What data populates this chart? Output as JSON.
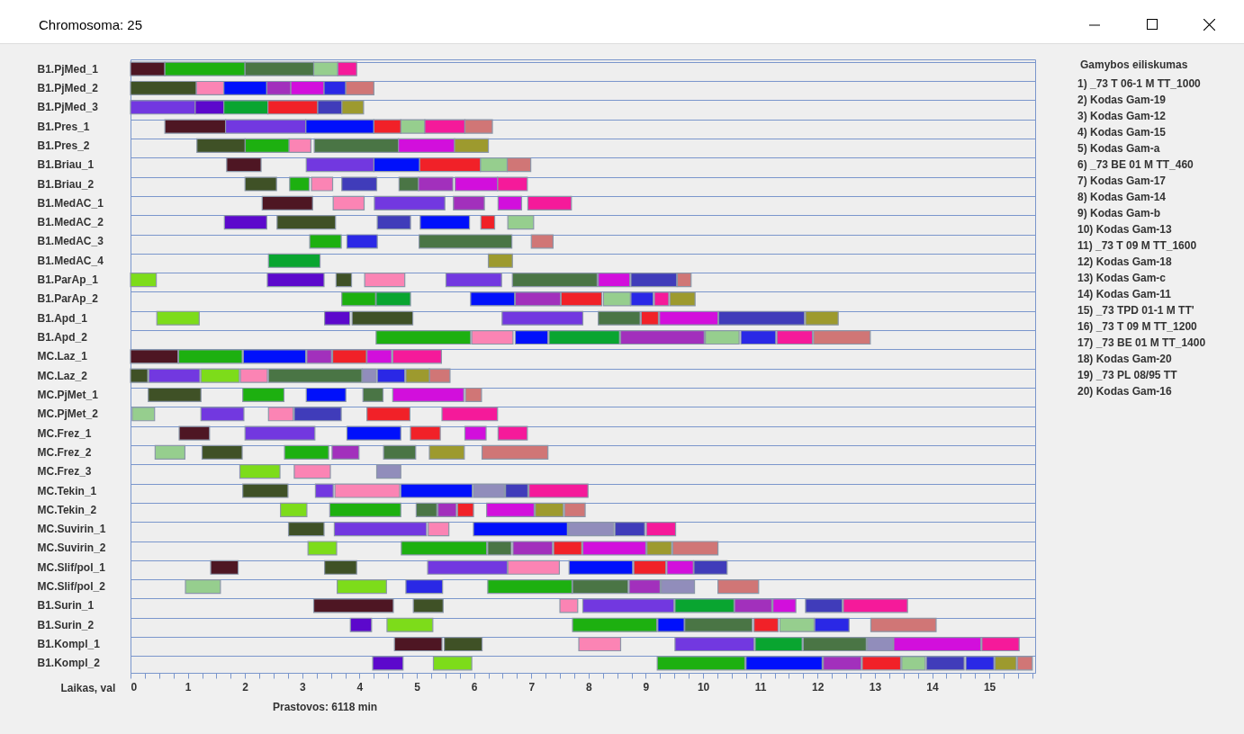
{
  "chart_data": {
    "type": "bar",
    "orientation": "horizontal",
    "title": "Chromosoma: 25",
    "xlabel": "Laikas, val",
    "grid": "y",
    "categories": [
      "B1.PjMed_1",
      "B1.PjMed_2",
      "B1.PjMed_3",
      "B1.Pres_1",
      "B1.Pres_2",
      "B1.Briau_1",
      "B1.Briau_2",
      "B1.MedAC_1",
      "B1.MedAC_2",
      "B1.MedAC_3",
      "B1.MedAC_4",
      "B1.ParAp_1",
      "B1.ParAp_2",
      "B1.Apd_1",
      "B1.Apd_2",
      "MC.Laz_1",
      "MC.Laz_2",
      "MC.PjMet_1",
      "MC.PjMet_2",
      "MC.Frez_1",
      "MC.Frez_2",
      "MC.Frez_3",
      "MC.Tekin_1",
      "MC.Tekin_2",
      "MC.Suvirin_1",
      "MC.Suvirin_2",
      "MC.Slif/pol_1",
      "MC.Slif/pol_2",
      "B1.Surin_1",
      "B1.Surin_2",
      "B1.Kompl_1",
      "B1.Kompl_2"
    ],
    "xlim": [
      0,
      15.8
    ],
    "xticks": [
      0,
      {
        "value": 0.25,
        "label": null
      },
      {
        "value": 0.5,
        "label": null
      },
      {
        "value": 0.75,
        "label": null
      },
      1,
      {
        "value": 1.25,
        "label": null
      },
      {
        "value": 1.5,
        "label": null
      },
      {
        "value": 1.75,
        "label": null
      },
      2,
      {
        "value": 2.25,
        "label": null
      },
      {
        "value": 2.5,
        "label": null
      },
      {
        "value": 2.75,
        "label": null
      },
      3,
      {
        "value": 3.25,
        "label": null
      },
      {
        "value": 3.5,
        "label": null
      },
      {
        "value": 3.75,
        "label": null
      },
      4,
      {
        "value": 4.25,
        "label": null
      },
      {
        "value": 4.5,
        "label": null
      },
      {
        "value": 4.75,
        "label": null
      },
      5,
      {
        "value": 5.25,
        "label": null
      },
      {
        "value": 5.5,
        "label": null
      },
      {
        "value": 5.75,
        "label": null
      },
      6,
      {
        "value": 6.25,
        "label": null
      },
      {
        "value": 6.5,
        "label": null
      },
      {
        "value": 6.75,
        "label": null
      },
      7,
      {
        "value": 7.25,
        "label": null
      },
      {
        "value": 7.5,
        "label": null
      },
      {
        "value": 7.75,
        "label": null
      },
      8,
      {
        "value": 8.25,
        "label": null
      },
      {
        "value": 8.5,
        "label": null
      },
      {
        "value": 8.75,
        "label": null
      },
      9,
      {
        "value": 9.25,
        "label": null
      },
      {
        "value": 9.5,
        "label": null
      },
      {
        "value": 9.75,
        "label": null
      },
      10,
      {
        "value": 10.25,
        "label": null
      },
      {
        "value": 10.5,
        "label": null
      },
      {
        "value": 10.75,
        "label": null
      },
      11,
      {
        "value": 11.25,
        "label": null
      },
      {
        "value": 11.5,
        "label": null
      },
      {
        "value": 11.75,
        "label": null
      },
      12,
      {
        "value": 12.25,
        "label": null
      },
      {
        "value": 12.5,
        "label": null
      },
      {
        "value": 12.75,
        "label": null
      },
      13,
      {
        "value": 13.25,
        "label": null
      },
      {
        "value": 13.5,
        "label": null
      },
      {
        "value": 13.75,
        "label": null
      },
      14,
      {
        "value": 14.25,
        "label": null
      },
      {
        "value": 14.5,
        "label": null
      },
      {
        "value": 14.75,
        "label": null
      },
      15,
      {
        "value": 15.25,
        "label": null
      },
      {
        "value": 15.5,
        "label": null
      },
      {
        "value": 15.75,
        "label": null
      }
    ],
    "series": [
      {
        "color": "#4e1623",
        "base": [
          0,
          null,
          null,
          0.6,
          null,
          1.68,
          null,
          2.3,
          null,
          null,
          null,
          null,
          null,
          null,
          null,
          0,
          null,
          null,
          null,
          0.85,
          null,
          null,
          null,
          null,
          null,
          null,
          1.4,
          null,
          3.2,
          null,
          4.61,
          null
        ],
        "values": [
          0.6,
          null,
          null,
          1.06,
          null,
          0.6,
          null,
          0.88,
          null,
          null,
          null,
          null,
          null,
          null,
          null,
          0.83,
          null,
          null,
          null,
          0.53,
          null,
          null,
          null,
          null,
          null,
          null,
          0.48,
          null,
          1.39,
          null,
          0.83,
          null
        ]
      },
      {
        "color": "#1db010",
        "base": [
          0.6,
          null,
          null,
          null,
          2.0,
          null,
          2.78,
          null,
          null,
          3.13,
          null,
          null,
          3.69,
          null,
          4.29,
          0.84,
          null,
          1.96,
          null,
          null,
          2.69,
          null,
          null,
          3.48,
          null,
          4.73,
          null,
          6.24,
          null,
          7.72,
          null,
          9.2
        ],
        "values": [
          1.4,
          null,
          null,
          null,
          0.77,
          null,
          0.34,
          null,
          null,
          0.55,
          null,
          null,
          0.59,
          null,
          1.65,
          1.11,
          null,
          0.72,
          null,
          null,
          0.77,
          null,
          null,
          1.24,
          null,
          1.49,
          null,
          1.47,
          null,
          1.47,
          null,
          1.53
        ]
      },
      {
        "color": "#4a7545",
        "base": [
          2.0,
          null,
          null,
          null,
          3.21,
          null,
          4.69,
          null,
          null,
          5.04,
          null,
          6.67,
          null,
          8.17,
          null,
          null,
          2.41,
          4.06,
          null,
          null,
          4.42,
          null,
          null,
          4.99,
          null,
          6.24,
          null,
          7.72,
          null,
          9.68,
          11.75,
          null
        ],
        "values": [
          1.2,
          null,
          null,
          null,
          1.47,
          null,
          0.34,
          null,
          null,
          1.62,
          null,
          1.48,
          null,
          0.73,
          null,
          null,
          1.63,
          0.35,
          null,
          null,
          0.56,
          null,
          null,
          0.36,
          null,
          0.41,
          null,
          0.97,
          null,
          1.18,
          1.1,
          null
        ]
      },
      {
        "color": "#96ce8e",
        "base": [
          3.2,
          null,
          null,
          4.72,
          null,
          6.11,
          null,
          null,
          6.59,
          null,
          null,
          null,
          8.26,
          null,
          10.04,
          null,
          null,
          null,
          0.03,
          null,
          0.43,
          null,
          null,
          null,
          null,
          null,
          null,
          0.96,
          null,
          11.34,
          null,
          13.47
        ],
        "values": [
          0.42,
          null,
          null,
          0.42,
          null,
          0.47,
          null,
          null,
          0.45,
          null,
          null,
          null,
          0.47,
          null,
          0.59,
          null,
          null,
          null,
          0.39,
          null,
          0.52,
          null,
          null,
          null,
          null,
          null,
          null,
          0.61,
          null,
          0.6,
          null,
          0.41
        ]
      },
      {
        "color": "#f51a9a",
        "base": [
          3.62,
          null,
          null,
          5.14,
          null,
          null,
          6.41,
          6.94,
          null,
          null,
          null,
          null,
          9.15,
          null,
          11.29,
          4.58,
          null,
          null,
          5.44,
          6.42,
          null,
          null,
          6.96,
          null,
          9.01,
          null,
          null,
          null,
          12.45,
          null,
          14.87,
          null
        ],
        "values": [
          0.33,
          null,
          null,
          0.7,
          null,
          null,
          0.52,
          0.76,
          null,
          null,
          null,
          null,
          0.25,
          null,
          0.62,
          0.85,
          null,
          null,
          0.97,
          0.51,
          null,
          null,
          1.03,
          null,
          0.51,
          null,
          null,
          null,
          1.12,
          null,
          0.65,
          null
        ]
      },
      {
        "color": "#3f5126",
        "base": [
          null,
          0,
          null,
          null,
          1.16,
          null,
          2.0,
          null,
          2.56,
          null,
          null,
          3.59,
          null,
          3.87,
          null,
          null,
          0,
          0.31,
          null,
          null,
          1.25,
          null,
          1.96,
          null,
          2.76,
          null,
          3.39,
          null,
          4.94,
          null,
          5.48,
          null
        ],
        "values": [
          null,
          1.15,
          null,
          null,
          0.84,
          null,
          0.55,
          null,
          1.02,
          null,
          null,
          0.27,
          null,
          1.06,
          null,
          null,
          0.3,
          0.92,
          null,
          null,
          0.7,
          null,
          0.79,
          null,
          0.62,
          null,
          0.56,
          null,
          0.52,
          null,
          0.66,
          null
        ]
      },
      {
        "color": "#fb84b4",
        "base": [
          null,
          1.15,
          null,
          null,
          2.77,
          null,
          3.16,
          3.54,
          null,
          null,
          null,
          4.09,
          null,
          null,
          5.96,
          null,
          1.92,
          null,
          2.41,
          null,
          null,
          2.86,
          3.57,
          null,
          5.2,
          null,
          6.59,
          null,
          7.5,
          null,
          7.83,
          null
        ],
        "values": [
          null,
          0.48,
          null,
          null,
          0.38,
          null,
          0.37,
          0.54,
          null,
          null,
          null,
          0.7,
          null,
          null,
          0.72,
          null,
          0.47,
          null,
          0.43,
          null,
          null,
          0.63,
          1.13,
          null,
          0.36,
          null,
          0.9,
          null,
          0.31,
          null,
          0.73,
          null
        ]
      },
      {
        "color": "#0010fb",
        "base": [
          null,
          1.63,
          null,
          3.06,
          null,
          4.25,
          null,
          null,
          5.06,
          null,
          null,
          null,
          5.94,
          null,
          6.72,
          1.97,
          null,
          3.07,
          null,
          3.78,
          null,
          null,
          4.72,
          null,
          5.99,
          null,
          7.66,
          null,
          null,
          9.21,
          null,
          10.75
        ],
        "values": [
          null,
          0.75,
          null,
          1.19,
          null,
          0.8,
          null,
          null,
          0.86,
          null,
          null,
          null,
          0.77,
          null,
          0.57,
          1.09,
          null,
          0.69,
          null,
          0.94,
          null,
          null,
          1.25,
          null,
          1.64,
          null,
          1.11,
          null,
          null,
          0.46,
          null,
          1.33
        ]
      },
      {
        "color": "#a230bc",
        "base": [
          null,
          2.38,
          null,
          null,
          null,
          null,
          5.03,
          5.64,
          null,
          null,
          null,
          null,
          6.72,
          null,
          8.56,
          3.08,
          null,
          null,
          null,
          null,
          3.52,
          null,
          null,
          5.37,
          null,
          6.68,
          null,
          8.71,
          10.55,
          null,
          null,
          12.1
        ],
        "values": [
          null,
          0.42,
          null,
          null,
          null,
          null,
          0.6,
          0.54,
          null,
          null,
          null,
          null,
          0.79,
          null,
          1.46,
          0.43,
          null,
          null,
          null,
          null,
          0.47,
          null,
          null,
          0.32,
          null,
          0.69,
          null,
          0.54,
          0.65,
          null,
          null,
          0.66
        ]
      },
      {
        "color": "#d20fdc",
        "base": [
          null,
          2.8,
          null,
          null,
          4.68,
          null,
          5.67,
          6.42,
          null,
          null,
          null,
          8.17,
          null,
          9.24,
          null,
          4.13,
          null,
          4.58,
          null,
          5.84,
          null,
          null,
          null,
          6.22,
          null,
          7.9,
          9.37,
          null,
          11.22,
          null,
          13.33,
          null
        ],
        "values": [
          null,
          0.58,
          null,
          null,
          0.98,
          null,
          0.74,
          0.41,
          null,
          null,
          null,
          0.55,
          null,
          1.02,
          null,
          0.43,
          null,
          1.24,
          null,
          0.37,
          null,
          null,
          null,
          0.83,
          null,
          1.1,
          0.46,
          null,
          0.4,
          null,
          1.52,
          null
        ]
      },
      {
        "color": "#2a28e6",
        "base": [
          null,
          3.38,
          null,
          null,
          null,
          null,
          null,
          null,
          null,
          3.78,
          null,
          null,
          8.74,
          null,
          10.66,
          null,
          4.31,
          null,
          null,
          null,
          null,
          null,
          null,
          null,
          null,
          null,
          null,
          4.81,
          null,
          11.95,
          null,
          14.59
        ],
        "values": [
          null,
          0.38,
          null,
          null,
          null,
          null,
          null,
          null,
          null,
          0.53,
          null,
          null,
          0.39,
          null,
          0.61,
          null,
          0.48,
          null,
          null,
          null,
          null,
          null,
          null,
          null,
          null,
          null,
          null,
          0.64,
          null,
          0.6,
          null,
          0.49
        ]
      },
      {
        "color": "#d07676",
        "base": [
          null,
          3.76,
          null,
          5.84,
          null,
          6.58,
          null,
          null,
          null,
          7.0,
          null,
          9.55,
          null,
          null,
          11.93,
          null,
          5.22,
          5.85,
          null,
          null,
          6.14,
          null,
          null,
          7.58,
          null,
          9.47,
          null,
          10.26,
          null,
          12.93,
          null,
          15.49
        ],
        "values": [
          null,
          0.49,
          null,
          0.48,
          null,
          0.41,
          null,
          null,
          null,
          0.38,
          null,
          0.24,
          null,
          null,
          0.99,
          null,
          0.36,
          0.28,
          null,
          null,
          1.15,
          null,
          null,
          0.36,
          null,
          0.79,
          null,
          0.71,
          null,
          1.14,
          null,
          0.26
        ]
      },
      {
        "color": "#7238e0",
        "base": [
          null,
          null,
          0,
          1.66,
          null,
          3.07,
          null,
          4.26,
          null,
          null,
          null,
          5.51,
          null,
          6.49,
          null,
          null,
          0.32,
          null,
          1.23,
          2.0,
          null,
          null,
          3.23,
          null,
          3.56,
          null,
          5.19,
          null,
          7.9,
          null,
          9.51,
          null
        ],
        "values": [
          null,
          null,
          1.13,
          1.4,
          null,
          1.18,
          null,
          1.23,
          null,
          null,
          null,
          0.97,
          null,
          1.41,
          null,
          null,
          0.89,
          null,
          0.75,
          1.22,
          null,
          null,
          0.31,
          null,
          1.61,
          null,
          1.39,
          null,
          1.59,
          null,
          1.38,
          null
        ]
      },
      {
        "color": "#5c08cc",
        "base": [
          null,
          null,
          1.13,
          null,
          null,
          null,
          null,
          null,
          1.64,
          null,
          null,
          2.39,
          null,
          3.39,
          null,
          null,
          null,
          null,
          null,
          null,
          null,
          null,
          null,
          null,
          null,
          null,
          null,
          null,
          null,
          3.84,
          null,
          4.23
        ],
        "values": [
          null,
          null,
          0.5,
          null,
          null,
          null,
          null,
          null,
          0.74,
          null,
          null,
          0.99,
          null,
          0.44,
          null,
          null,
          null,
          null,
          null,
          null,
          null,
          null,
          null,
          null,
          null,
          null,
          null,
          null,
          null,
          0.37,
          null,
          0.53
        ]
      },
      {
        "color": "#09a530",
        "base": [
          null,
          null,
          1.63,
          null,
          null,
          null,
          null,
          null,
          null,
          null,
          2.41,
          null,
          4.29,
          null,
          7.31,
          null,
          null,
          null,
          null,
          null,
          null,
          null,
          null,
          null,
          null,
          null,
          null,
          null,
          9.51,
          null,
          10.91,
          null
        ],
        "values": [
          null,
          null,
          0.77,
          null,
          null,
          null,
          null,
          null,
          null,
          null,
          0.9,
          null,
          0.6,
          null,
          1.23,
          null,
          null,
          null,
          null,
          null,
          null,
          null,
          null,
          null,
          null,
          null,
          null,
          null,
          1.03,
          null,
          0.82,
          null
        ]
      },
      {
        "color": "#f12128",
        "base": [
          null,
          null,
          2.4,
          4.25,
          null,
          5.05,
          null,
          null,
          6.12,
          null,
          null,
          null,
          7.52,
          8.92,
          null,
          3.53,
          null,
          null,
          4.13,
          4.89,
          null,
          null,
          null,
          5.71,
          null,
          7.39,
          8.79,
          null,
          null,
          10.89,
          null,
          12.78
        ],
        "values": [
          null,
          null,
          0.87,
          0.47,
          null,
          1.06,
          null,
          null,
          0.24,
          null,
          null,
          null,
          0.71,
          0.3,
          null,
          0.59,
          null,
          null,
          0.75,
          0.52,
          null,
          null,
          null,
          0.28,
          null,
          0.49,
          0.56,
          null,
          null,
          0.42,
          null,
          0.67
        ]
      },
      {
        "color": "#9d9a2e",
        "base": [
          null,
          null,
          3.69,
          null,
          5.66,
          null,
          null,
          null,
          null,
          null,
          6.25,
          null,
          9.42,
          11.79,
          null,
          null,
          4.81,
          null,
          null,
          null,
          5.22,
          null,
          null,
          7.07,
          null,
          9.02,
          null,
          null,
          null,
          null,
          null,
          15.1
        ],
        "values": [
          null,
          null,
          0.38,
          null,
          0.59,
          null,
          null,
          null,
          null,
          null,
          0.42,
          null,
          0.44,
          0.57,
          null,
          null,
          0.41,
          null,
          null,
          null,
          0.61,
          null,
          null,
          0.49,
          null,
          0.43,
          null,
          null,
          null,
          null,
          null,
          0.37
        ]
      },
      {
        "color": "#7ddc1a",
        "base": [
          null,
          null,
          null,
          null,
          null,
          null,
          null,
          null,
          null,
          null,
          null,
          0,
          null,
          0.46,
          null,
          null,
          1.23,
          null,
          null,
          null,
          null,
          1.91,
          null,
          2.62,
          null,
          3.1,
          null,
          3.61,
          null,
          4.48,
          null,
          5.29
        ],
        "values": [
          null,
          null,
          null,
          null,
          null,
          null,
          null,
          null,
          null,
          null,
          null,
          0.45,
          null,
          0.74,
          null,
          null,
          0.67,
          null,
          null,
          null,
          null,
          0.7,
          null,
          0.46,
          null,
          0.5,
          null,
          0.86,
          null,
          0.8,
          null,
          0.67
        ]
      },
      {
        "color": "#403cba",
        "base": [
          null,
          null,
          3.27,
          null,
          null,
          null,
          3.69,
          null,
          4.31,
          null,
          null,
          8.74,
          null,
          10.27,
          null,
          null,
          null,
          null,
          2.86,
          null,
          null,
          null,
          6.55,
          null,
          8.46,
          null,
          9.84,
          null,
          11.79,
          null,
          null,
          13.9
        ],
        "values": [
          null,
          null,
          0.42,
          null,
          null,
          null,
          0.61,
          null,
          0.58,
          null,
          null,
          0.8,
          null,
          1.5,
          null,
          null,
          null,
          null,
          0.82,
          null,
          null,
          null,
          0.39,
          null,
          0.52,
          null,
          0.58,
          null,
          0.64,
          null,
          null,
          0.66
        ]
      },
      {
        "color": "#918dbb",
        "base": [
          null,
          null,
          null,
          null,
          null,
          null,
          null,
          null,
          null,
          null,
          null,
          null,
          null,
          null,
          null,
          null,
          4.05,
          null,
          null,
          null,
          null,
          4.3,
          5.99,
          null,
          7.65,
          null,
          null,
          9.27,
          null,
          null,
          12.87,
          null
        ],
        "values": [
          null,
          null,
          null,
          null,
          null,
          null,
          null,
          null,
          null,
          null,
          null,
          null,
          null,
          null,
          null,
          null,
          0.24,
          null,
          null,
          null,
          null,
          0.42,
          0.54,
          null,
          0.79,
          null,
          null,
          0.58,
          null,
          null,
          0.45,
          null
        ]
      }
    ],
    "annotations": [
      "Gamybos eiliskumas",
      "1) _73 T 06-1 M TT_1000",
      "2) Kodas Gam-19",
      "3) Kodas Gam-12",
      "4) Kodas Gam-15",
      "5) Kodas Gam-a",
      "6) _73 BE 01 M TT_460",
      "7) Kodas Gam-17",
      "8) Kodas Gam-14",
      "9) Kodas Gam-b",
      "10) Kodas Gam-13",
      "11) _73 T 09 M TT_1600",
      "12) Kodas Gam-18",
      "13) Kodas Gam-c",
      "14) Kodas Gam-11",
      "15) _73 TPD 01-1 M TT'",
      "16) _73 T 09 M TT_1200",
      "17) _73 BE 01 M TT_1400",
      "18) Kodas Gam-20",
      "19) _73 PL 08/95 TT",
      "20) Kodas Gam-16",
      "Prastovos: 6118 min"
    ]
  }
}
